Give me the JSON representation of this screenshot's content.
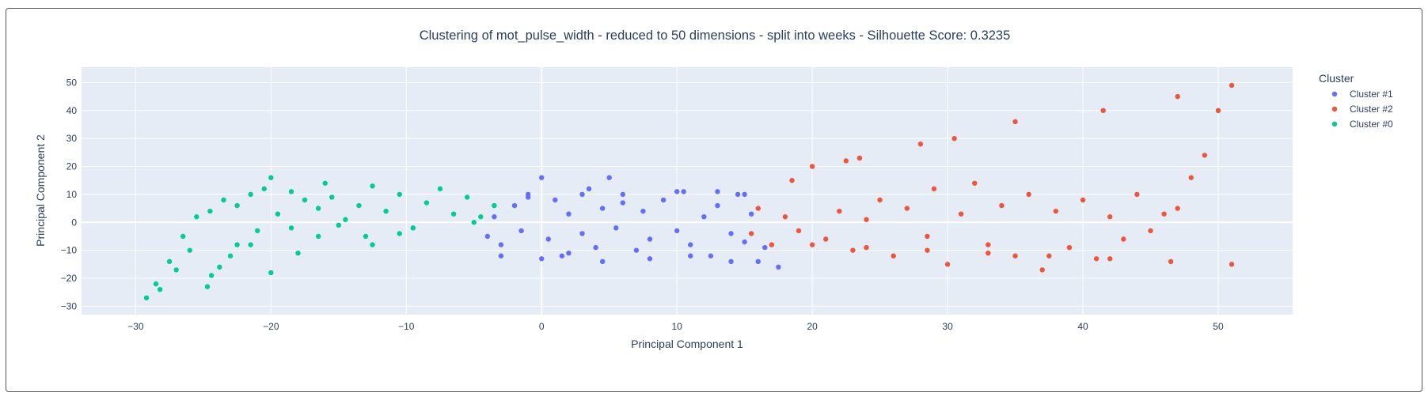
{
  "chart_data": {
    "type": "scatter",
    "title": "Clustering of mot_pulse_width - reduced to 50 dimensions - split into weeks - Silhouette Score: 0.3235",
    "xlabel": "Principal Component 1",
    "ylabel": "Principal Component 2",
    "xlim": [
      -34,
      55.5
    ],
    "ylim": [
      -33,
      55.5
    ],
    "xticks": [
      -30,
      -20,
      -10,
      0,
      10,
      20,
      30,
      40,
      50
    ],
    "yticks": [
      -30,
      -20,
      -10,
      0,
      10,
      20,
      30,
      40,
      50
    ],
    "xtick_labels": [
      "−30",
      "−20",
      "−10",
      "0",
      "10",
      "20",
      "30",
      "40",
      "50"
    ],
    "ytick_labels": [
      "−30",
      "−20",
      "−10",
      "0",
      "10",
      "20",
      "30",
      "40",
      "50"
    ],
    "grid": true,
    "legend_title": "Cluster",
    "legend_position": "right",
    "series": [
      {
        "name": "Cluster #1",
        "color": "#636efa",
        "x": [
          -4,
          -3.5,
          -3,
          -2,
          -1.5,
          -1,
          0,
          0.5,
          1,
          1.5,
          2,
          3,
          3.5,
          4,
          4.5,
          5,
          5.5,
          6,
          7,
          7.5,
          8,
          9,
          10,
          10.5,
          11,
          12,
          12.5,
          13,
          14,
          14.5,
          15,
          15.5,
          16,
          -3,
          0,
          2,
          4.5,
          8,
          11,
          14,
          16.5,
          -1,
          3,
          6,
          10,
          13,
          15,
          17.5
        ],
        "y": [
          -5,
          2,
          -8,
          6,
          -3,
          10,
          16,
          -6,
          8,
          -12,
          3,
          -4,
          12,
          -9,
          5,
          16,
          -2,
          7,
          -10,
          4,
          -6,
          8,
          -3,
          11,
          -8,
          2,
          -12,
          6,
          -4,
          10,
          -7,
          3,
          -14,
          -12,
          -13,
          -11,
          -14,
          -13,
          -12,
          -14,
          -9,
          9,
          10,
          10,
          11,
          11,
          10,
          -16
        ]
      },
      {
        "name": "Cluster #2",
        "color": "#ef553b",
        "x": [
          15.5,
          16,
          17,
          18,
          18.5,
          19,
          20,
          21,
          22,
          22.5,
          23,
          24,
          25,
          26,
          27,
          28,
          28.5,
          29,
          30,
          31,
          32,
          33,
          34,
          35,
          36,
          37,
          38,
          39,
          40,
          41,
          42,
          43,
          44,
          45,
          46,
          47,
          48,
          49,
          50,
          51,
          20,
          24,
          28.5,
          33,
          37.5,
          42,
          46.5,
          51,
          23.5,
          30.5,
          35,
          41.5,
          47
        ],
        "y": [
          -4,
          5,
          -8,
          2,
          15,
          -3,
          20,
          -6,
          4,
          22,
          -10,
          1,
          8,
          -12,
          5,
          28,
          -5,
          12,
          -15,
          3,
          14,
          -8,
          6,
          -12,
          10,
          -17,
          4,
          -9,
          8,
          -13,
          2,
          -6,
          10,
          -3,
          3,
          5,
          16,
          24,
          40,
          49,
          -8,
          -9,
          -10,
          -11,
          -12,
          -13,
          -14,
          -15,
          23,
          30,
          36,
          40,
          45
        ]
      },
      {
        "name": "Cluster #0",
        "color": "#00cc96",
        "x": [
          -29.2,
          -28.5,
          -27.5,
          -26.5,
          -25.5,
          -24.5,
          -23.5,
          -22.5,
          -21.5,
          -20.5,
          -20,
          -19.5,
          -18.5,
          -17.5,
          -16.5,
          -16,
          -15.5,
          -14.5,
          -13.5,
          -12.5,
          -11.5,
          -10.5,
          -9.5,
          -8.5,
          -7.5,
          -6.5,
          -5.5,
          -4.5,
          -3.5,
          -24.7,
          -23.8,
          -22.5,
          -21,
          -18.5,
          -15,
          -13,
          -9.5,
          -5,
          -28.2,
          -27,
          -26,
          -24.4,
          -23,
          -21.5,
          -20,
          -18,
          -16.5,
          -12.5,
          -10.5
        ],
        "y": [
          -27,
          -22,
          -14,
          -5,
          2,
          4,
          8,
          6,
          10,
          12,
          16,
          3,
          11,
          8,
          5,
          14,
          9,
          1,
          6,
          13,
          4,
          10,
          -2,
          7,
          12,
          3,
          9,
          2,
          6,
          -23,
          -16,
          -8,
          -3,
          -2,
          -1,
          -5,
          -2,
          0,
          -24,
          -17,
          -10,
          -19,
          -12,
          -8,
          -18,
          -11,
          -5,
          -8,
          -4
        ]
      }
    ]
  }
}
